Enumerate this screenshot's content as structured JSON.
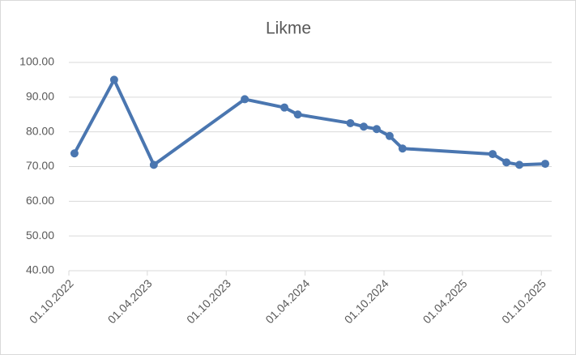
{
  "chart_data": {
    "type": "line",
    "title": "Likme",
    "x": [
      "2022-10-14",
      "2023-01-14",
      "2023-04-16",
      "2023-11-13",
      "2024-02-13",
      "2024-03-15",
      "2024-07-15",
      "2024-08-15",
      "2024-09-14",
      "2024-10-14",
      "2024-11-13",
      "2025-06-10",
      "2025-07-12",
      "2025-08-11",
      "2025-10-10"
    ],
    "series": [
      {
        "name": "Likme",
        "color": "#4a76b0",
        "values": [
          73.8,
          95.0,
          70.5,
          89.4,
          87.0,
          85.0,
          82.5,
          81.5,
          80.8,
          78.8,
          75.2,
          73.6,
          71.2,
          70.5,
          70.8
        ]
      }
    ],
    "xlim": [
      "2022-10-01",
      "2025-10-25"
    ],
    "xticks": [
      {
        "value": "2022-10-01",
        "label": "01.10.2022"
      },
      {
        "value": "2023-04-01",
        "label": "01.04.2023"
      },
      {
        "value": "2023-10-01",
        "label": "01.10.2023"
      },
      {
        "value": "2024-04-01",
        "label": "01.04.2024"
      },
      {
        "value": "2024-10-01",
        "label": "01.10.2024"
      },
      {
        "value": "2025-04-01",
        "label": "01.04.2025"
      },
      {
        "value": "2025-10-01",
        "label": "01.10.2025"
      }
    ],
    "ylim": [
      40,
      100
    ],
    "yticks": [
      {
        "value": 40,
        "label": "40.00"
      },
      {
        "value": 50,
        "label": "50.00"
      },
      {
        "value": 60,
        "label": "60.00"
      },
      {
        "value": 70,
        "label": "70.00"
      },
      {
        "value": 80,
        "label": "80.00"
      },
      {
        "value": 90,
        "label": "90.00"
      },
      {
        "value": 100,
        "label": "100.00"
      }
    ],
    "grid": true
  }
}
